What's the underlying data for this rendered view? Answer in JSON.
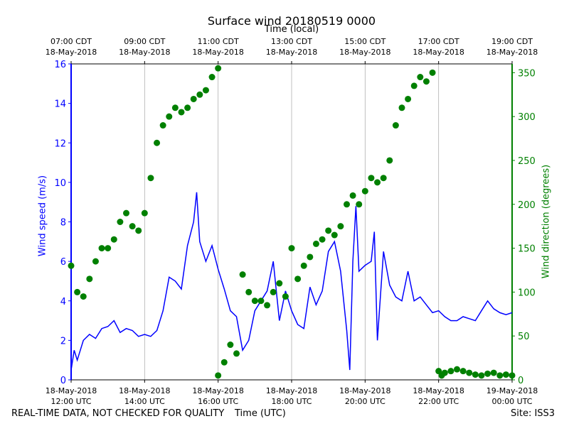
{
  "chart_data": {
    "type": "line",
    "title": "Surface wind 20180519 0000",
    "xlabel": "Time (UTC)",
    "top_axis_label": "Time (local)",
    "ylabel_left": "Wind speed (m/s)",
    "ylabel_right": "Wind direction (degrees)",
    "footer_left": "REAL-TIME DATA, NOT CHECKED FOR QUALITY",
    "footer_right": "Site: ISS3",
    "x_ticks_bottom": [
      {
        "date": "18-May-2018",
        "time": "12:00 UTC"
      },
      {
        "date": "18-May-2018",
        "time": "14:00 UTC"
      },
      {
        "date": "18-May-2018",
        "time": "16:00 UTC"
      },
      {
        "date": "18-May-2018",
        "time": "18:00 UTC"
      },
      {
        "date": "18-May-2018",
        "time": "20:00 UTC"
      },
      {
        "date": "18-May-2018",
        "time": "22:00 UTC"
      },
      {
        "date": "19-May-2018",
        "time": "00:00 UTC"
      }
    ],
    "x_ticks_top": [
      {
        "time": "07:00 CDT",
        "date": "18-May-2018"
      },
      {
        "time": "09:00 CDT",
        "date": "18-May-2018"
      },
      {
        "time": "11:00 CDT",
        "date": "18-May-2018"
      },
      {
        "time": "13:00 CDT",
        "date": "18-May-2018"
      },
      {
        "time": "15:00 CDT",
        "date": "18-May-2018"
      },
      {
        "time": "17:00 CDT",
        "date": "18-May-2018"
      },
      {
        "time": "19:00 CDT",
        "date": "18-May-2018"
      }
    ],
    "xlim": [
      "2018-05-18 12:00 UTC",
      "2018-05-19 00:00 UTC"
    ],
    "ylim_left": [
      0,
      16
    ],
    "ylim_right": [
      0,
      360
    ],
    "yticks_left": [
      0,
      2,
      4,
      6,
      8,
      10,
      12,
      14,
      16
    ],
    "yticks_right": [
      0,
      50,
      100,
      150,
      200,
      250,
      300,
      350
    ],
    "grid": "vertical",
    "series": [
      {
        "name": "Wind speed (m/s)",
        "axis": "left",
        "style": "line",
        "color": "#0000ff",
        "x": [
          "12:00",
          "12:05",
          "12:10",
          "12:20",
          "12:30",
          "12:40",
          "12:50",
          "13:00",
          "13:10",
          "13:20",
          "13:30",
          "13:40",
          "13:50",
          "14:00",
          "14:10",
          "14:20",
          "14:30",
          "14:40",
          "14:50",
          "15:00",
          "15:10",
          "15:20",
          "15:25",
          "15:30",
          "15:40",
          "15:50",
          "16:00",
          "16:10",
          "16:20",
          "16:30",
          "16:40",
          "16:50",
          "17:00",
          "17:10",
          "17:20",
          "17:30",
          "17:40",
          "17:50",
          "18:00",
          "18:10",
          "18:20",
          "18:30",
          "18:40",
          "18:50",
          "19:00",
          "19:10",
          "19:20",
          "19:30",
          "19:35",
          "19:40",
          "19:45",
          "19:50",
          "20:00",
          "20:10",
          "20:15",
          "20:20",
          "20:30",
          "20:40",
          "20:50",
          "21:00",
          "21:10",
          "21:20",
          "21:30",
          "21:40",
          "21:50",
          "22:00",
          "22:10",
          "22:20",
          "22:30",
          "22:40",
          "22:50",
          "23:00",
          "23:10",
          "23:20",
          "23:30",
          "23:40",
          "23:50",
          "24:00"
        ],
        "y": [
          0.5,
          1.5,
          1.0,
          2.0,
          2.3,
          2.1,
          2.6,
          2.7,
          3.0,
          2.4,
          2.6,
          2.5,
          2.2,
          2.3,
          2.2,
          2.5,
          3.5,
          5.2,
          5.0,
          4.6,
          6.8,
          8.0,
          9.5,
          7.0,
          6.0,
          6.8,
          5.6,
          4.6,
          3.5,
          3.2,
          1.5,
          2.0,
          3.5,
          4.0,
          4.5,
          6.0,
          3.0,
          4.5,
          3.5,
          2.8,
          2.6,
          4.7,
          3.8,
          4.5,
          6.5,
          7.0,
          5.5,
          2.5,
          0.5,
          6.0,
          8.8,
          5.5,
          5.8,
          6.0,
          7.5,
          2.0,
          6.5,
          4.8,
          4.2,
          4.0,
          5.5,
          4.0,
          4.2,
          3.8,
          3.4,
          3.5,
          3.2,
          3.0,
          3.0,
          3.2,
          3.1,
          3.0,
          3.5,
          4.0,
          3.6,
          3.4,
          3.3,
          3.4
        ]
      },
      {
        "name": "Wind direction (degrees)",
        "axis": "right",
        "style": "markers",
        "color": "#008000",
        "x": [
          "12:00",
          "12:10",
          "12:20",
          "12:30",
          "12:40",
          "12:50",
          "13:00",
          "13:10",
          "13:20",
          "13:30",
          "13:40",
          "13:50",
          "14:00",
          "14:10",
          "14:20",
          "14:30",
          "14:40",
          "14:50",
          "15:00",
          "15:10",
          "15:20",
          "15:30",
          "15:40",
          "15:50",
          "16:00",
          "16:00",
          "16:10",
          "16:20",
          "16:30",
          "16:40",
          "16:50",
          "17:00",
          "17:10",
          "17:20",
          "17:30",
          "17:40",
          "17:50",
          "18:00",
          "18:10",
          "18:20",
          "18:30",
          "18:40",
          "18:50",
          "19:00",
          "19:10",
          "19:20",
          "19:30",
          "19:40",
          "19:50",
          "20:00",
          "20:10",
          "20:20",
          "20:30",
          "20:40",
          "20:50",
          "21:00",
          "21:10",
          "21:20",
          "21:30",
          "21:40",
          "21:50",
          "22:00",
          "22:05",
          "22:10",
          "22:20",
          "22:30",
          "22:40",
          "22:50",
          "23:00",
          "23:10",
          "23:20",
          "23:30",
          "23:40",
          "23:50",
          "24:00"
        ],
        "y": [
          130,
          100,
          95,
          115,
          135,
          150,
          150,
          160,
          180,
          190,
          175,
          170,
          190,
          230,
          270,
          290,
          300,
          310,
          305,
          310,
          320,
          325,
          330,
          345,
          355,
          5,
          20,
          40,
          30,
          120,
          100,
          90,
          90,
          85,
          100,
          110,
          95,
          150,
          115,
          130,
          140,
          155,
          160,
          170,
          165,
          175,
          200,
          210,
          200,
          215,
          230,
          225,
          230,
          250,
          290,
          310,
          320,
          335,
          345,
          340,
          350,
          10,
          5,
          8,
          10,
          12,
          10,
          8,
          6,
          5,
          7,
          8,
          5,
          6,
          5
        ]
      }
    ]
  }
}
